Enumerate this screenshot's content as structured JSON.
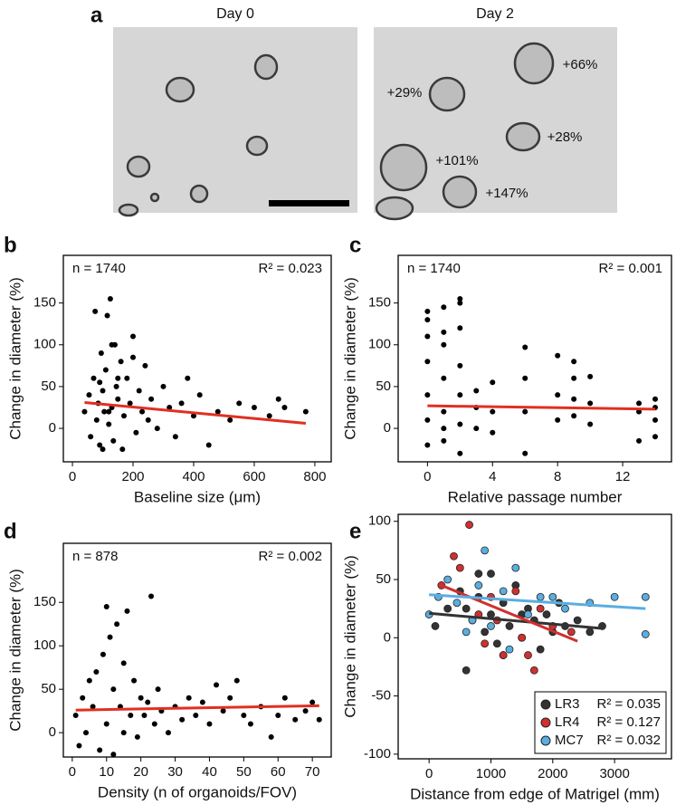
{
  "panel_labels": [
    "a",
    "b",
    "c",
    "d",
    "e"
  ],
  "images": {
    "titles": [
      "Day 0",
      "Day 2"
    ],
    "annotations": [
      "+66%",
      "+29%",
      "+28%",
      "+101%",
      "+147%"
    ]
  },
  "chart_data": [
    {
      "type": "scatter",
      "n_label": "n = 1740",
      "r2_label": "R² = 0.023",
      "xlabel": "Baseline size (μm)",
      "ylabel": "Change in diameter (%)",
      "xlim": [
        -30,
        854
      ],
      "xticks": [
        0,
        200,
        400,
        600,
        800
      ],
      "ylim": [
        -40,
        207
      ],
      "yticks": [
        0,
        50,
        100,
        150
      ],
      "color": "#000000",
      "x": [
        40,
        55,
        60,
        70,
        75,
        80,
        85,
        90,
        95,
        100,
        105,
        110,
        115,
        120,
        125,
        130,
        135,
        140,
        145,
        150,
        160,
        165,
        170,
        180,
        190,
        200,
        210,
        220,
        230,
        240,
        250,
        260,
        280,
        300,
        320,
        340,
        360,
        380,
        400,
        420,
        450,
        480,
        520,
        550,
        600,
        650,
        680,
        700,
        770,
        130,
        100,
        90,
        150,
        120,
        200
      ],
      "values": [
        20,
        40,
        -10,
        60,
        140,
        10,
        30,
        -20,
        90,
        45,
        20,
        70,
        135,
        5,
        155,
        25,
        -15,
        100,
        50,
        35,
        80,
        -25,
        15,
        60,
        30,
        110,
        -5,
        45,
        20,
        75,
        10,
        35,
        0,
        50,
        25,
        -10,
        30,
        60,
        15,
        40,
        -20,
        20,
        10,
        30,
        25,
        15,
        35,
        25,
        20,
        100,
        -25,
        55,
        60,
        20,
        85
      ],
      "fit": {
        "color": "#e03020",
        "x": [
          40,
          770
        ],
        "y": [
          31,
          6
        ]
      }
    },
    {
      "type": "scatter",
      "n_label": "n = 1740",
      "r2_label": "R² = 0.001",
      "xlabel": "Relative passage number",
      "ylabel": "Change in diameter (%)",
      "xlim": [
        -1.8,
        15
      ],
      "xticks": [
        0,
        4,
        8,
        12
      ],
      "ylim": [
        -40,
        207
      ],
      "yticks": [
        0,
        50,
        100,
        150
      ],
      "color": "#000000",
      "x": [
        0,
        0,
        0,
        0,
        0,
        0,
        0,
        1,
        1,
        1,
        1,
        1,
        1,
        1,
        2,
        2,
        2,
        2,
        2,
        2,
        2,
        3,
        3,
        3,
        4,
        4,
        4,
        6,
        6,
        6,
        6,
        8,
        8,
        8,
        9,
        9,
        9,
        9,
        10,
        10,
        10,
        13,
        13,
        13,
        14,
        14,
        14,
        14
      ],
      "values": [
        -20,
        10,
        40,
        80,
        110,
        140,
        130,
        -15,
        20,
        60,
        100,
        115,
        145,
        0,
        -30,
        5,
        40,
        75,
        150,
        155,
        120,
        0,
        25,
        45,
        -5,
        20,
        55,
        -30,
        20,
        60,
        97,
        10,
        40,
        87,
        15,
        35,
        80,
        60,
        5,
        30,
        62,
        -15,
        20,
        30,
        -10,
        10,
        25,
        35
      ],
      "fit": {
        "color": "#e03020",
        "x": [
          0,
          14
        ],
        "y": [
          27,
          23
        ]
      }
    },
    {
      "type": "scatter",
      "n_label": "n = 878",
      "r2_label": "R² = 0.002",
      "xlabel": "Density (n of organoids/FOV)",
      "ylabel": "Change in diameter (%)",
      "xlim": [
        -2.6,
        75.5
      ],
      "xticks": [
        0,
        10,
        20,
        30,
        40,
        50,
        60,
        70
      ],
      "ylim": [
        -28,
        218
      ],
      "yticks": [
        0,
        50,
        100,
        150
      ],
      "color": "#000000",
      "x": [
        1,
        2,
        3,
        4,
        5,
        6,
        7,
        8,
        9,
        10,
        10,
        11,
        12,
        12,
        13,
        14,
        15,
        15,
        16,
        17,
        18,
        19,
        20,
        21,
        22,
        23,
        24,
        25,
        26,
        28,
        30,
        32,
        34,
        36,
        38,
        40,
        42,
        44,
        46,
        48,
        50,
        52,
        55,
        58,
        60,
        62,
        65,
        68,
        70,
        72
      ],
      "values": [
        20,
        -15,
        40,
        0,
        60,
        30,
        70,
        -20,
        90,
        145,
        10,
        110,
        50,
        -25,
        125,
        30,
        80,
        0,
        140,
        20,
        60,
        -5,
        40,
        20,
        35,
        157,
        10,
        50,
        25,
        0,
        30,
        15,
        40,
        20,
        35,
        10,
        55,
        25,
        40,
        60,
        20,
        10,
        30,
        -5,
        20,
        40,
        15,
        25,
        35,
        15
      ],
      "fit": {
        "color": "#e03020",
        "x": [
          1,
          72
        ],
        "y": [
          26,
          31
        ]
      }
    },
    {
      "type": "scatter",
      "xlabel": "Distance from edge of  Matrigel (mm)",
      "ylabel": "Change in diameter (%)",
      "xlim": [
        -500,
        3920
      ],
      "xticks": [
        0,
        1000,
        2000,
        3000
      ],
      "ylim": [
        -104,
        106
      ],
      "yticks": [
        -100,
        -50,
        0,
        50,
        100
      ],
      "legend": "lower right",
      "series": [
        {
          "name": "LR3",
          "r2_label": "R² = 0.035",
          "color": "#333333",
          "x": [
            100,
            300,
            500,
            600,
            700,
            800,
            900,
            1000,
            1100,
            1200,
            1300,
            1400,
            1500,
            1600,
            1700,
            1800,
            1900,
            2000,
            2100,
            2200,
            2400,
            2600,
            2800,
            800,
            1200,
            1500,
            1000,
            600
          ],
          "values": [
            10,
            25,
            40,
            -28,
            15,
            55,
            5,
            20,
            -5,
            30,
            10,
            45,
            0,
            25,
            15,
            -10,
            20,
            5,
            30,
            10,
            15,
            5,
            10,
            35,
            -15,
            20,
            55,
            25
          ],
          "fit": {
            "x": [
              0,
              2800
            ],
            "y": [
              21,
              8
            ]
          }
        },
        {
          "name": "LR4",
          "r2_label": "R² = 0.127",
          "color": "#d03030",
          "x": [
            200,
            400,
            500,
            650,
            800,
            1000,
            1100,
            1200,
            1400,
            1500,
            1700,
            1800,
            2000,
            2300,
            1600,
            900
          ],
          "values": [
            45,
            70,
            60,
            97,
            20,
            35,
            15,
            -15,
            40,
            0,
            -28,
            25,
            10,
            5,
            -15,
            -5
          ],
          "fit": {
            "x": [
              200,
              2400
            ],
            "y": [
              45,
              -3
            ]
          }
        },
        {
          "name": "MC7",
          "r2_label": "R² = 0.032",
          "color": "#5aaee0",
          "x": [
            0,
            150,
            300,
            450,
            600,
            800,
            1000,
            1200,
            1400,
            1600,
            1800,
            2000,
            2200,
            2600,
            3000,
            3500,
            3500,
            900,
            700,
            1300
          ],
          "values": [
            20,
            35,
            50,
            30,
            5,
            45,
            10,
            40,
            60,
            20,
            35,
            35,
            25,
            30,
            35,
            35,
            3,
            75,
            15,
            -10
          ],
          "fit": {
            "x": [
              0,
              3500
            ],
            "y": [
              37,
              25
            ]
          }
        }
      ]
    }
  ]
}
